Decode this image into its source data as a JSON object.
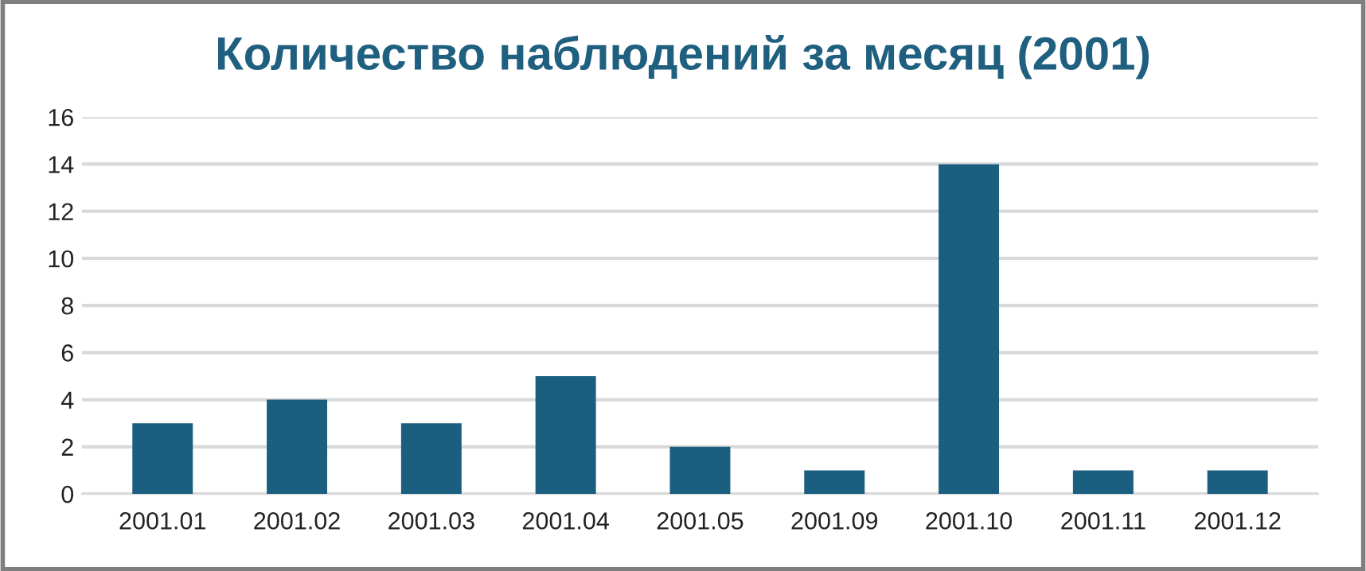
{
  "chart_data": {
    "type": "bar",
    "title": "Количество наблюдений за месяц (2001)",
    "categories": [
      "2001.01",
      "2001.02",
      "2001.03",
      "2001.04",
      "2001.05",
      "2001.09",
      "2001.10",
      "2001.11",
      "2001.12"
    ],
    "values": [
      3,
      4,
      3,
      5,
      2,
      1,
      14,
      1,
      1
    ],
    "color": "#1a5e80",
    "ylim": [
      0,
      16
    ],
    "yticks": [
      0,
      2,
      4,
      6,
      8,
      10,
      12,
      14,
      16
    ],
    "grid": "y"
  }
}
